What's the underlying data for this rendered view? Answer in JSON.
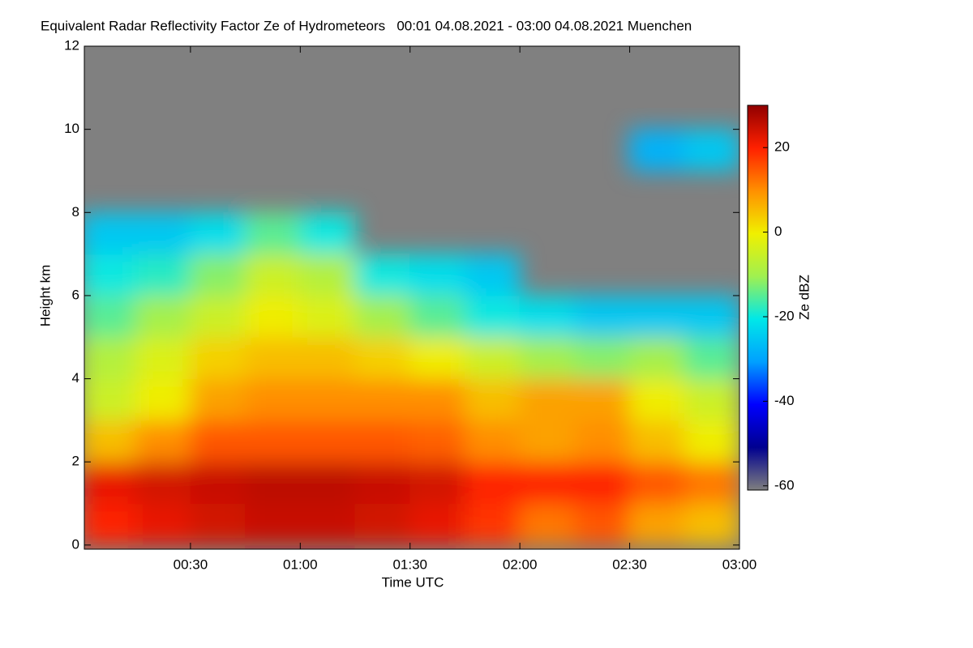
{
  "chart_data": {
    "type": "heatmap",
    "title": "Equivalent Radar Reflectivity Factor Ze of Hydrometeors   00:01 04.08.2021 - 03:00 04.08.2021 Muenchen",
    "x_label": "Time UTC",
    "y_label": "Height km",
    "colorbar_label": "Ze dBZ",
    "x": [
      7.5,
      22.5,
      37.5,
      52.5,
      67.5,
      82.5,
      97.5,
      112.5,
      127.5,
      142.5,
      157.5,
      172.5
    ],
    "y": [
      0.5,
      1.5,
      2.5,
      3.5,
      4.5,
      5.5,
      6.5,
      7.5,
      8.5,
      9.5,
      10.5,
      11.5
    ],
    "z": [
      [
        20,
        22,
        24,
        25,
        25,
        24,
        22,
        18,
        12,
        15,
        8,
        5
      ],
      [
        22,
        24,
        25,
        26,
        26,
        25,
        24,
        20,
        20,
        20,
        15,
        12
      ],
      [
        5,
        10,
        15,
        15,
        15,
        15,
        14,
        10,
        8,
        10,
        5,
        0
      ],
      [
        -5,
        0,
        8,
        10,
        10,
        10,
        10,
        5,
        8,
        8,
        0,
        -5
      ],
      [
        -8,
        -3,
        3,
        5,
        5,
        3,
        0,
        -5,
        -10,
        -12,
        -10,
        -15
      ],
      [
        -15,
        -10,
        -5,
        0,
        -3,
        -10,
        -15,
        -20,
        -22,
        -25,
        -25,
        -25
      ],
      [
        -20,
        -18,
        -12,
        -5,
        -8,
        -20,
        -22,
        -25,
        null,
        null,
        null,
        null
      ],
      [
        -25,
        -25,
        -22,
        -15,
        -20,
        null,
        null,
        null,
        null,
        null,
        null,
        null
      ],
      [
        null,
        null,
        null,
        null,
        null,
        null,
        null,
        null,
        null,
        null,
        null,
        null
      ],
      [
        null,
        null,
        null,
        null,
        null,
        null,
        null,
        null,
        null,
        null,
        -28,
        -25
      ],
      [
        null,
        null,
        null,
        null,
        null,
        null,
        null,
        null,
        null,
        null,
        null,
        null
      ],
      [
        null,
        null,
        null,
        null,
        null,
        null,
        null,
        null,
        null,
        null,
        null,
        null
      ]
    ],
    "xlim": [
      1,
      180
    ],
    "ylim": [
      -0.1,
      12
    ],
    "zlim": [
      -61,
      30
    ],
    "xticks": [
      {
        "value": 30,
        "label": "00:30"
      },
      {
        "value": 60,
        "label": "01:00"
      },
      {
        "value": 90,
        "label": "01:30"
      },
      {
        "value": 120,
        "label": "02:00"
      },
      {
        "value": 150,
        "label": "02:30"
      },
      {
        "value": 180,
        "label": "03:00"
      }
    ],
    "yticks": [
      0,
      2,
      4,
      6,
      8,
      10,
      12
    ],
    "zticks": [
      -60,
      -40,
      -20,
      0,
      20
    ],
    "colorscale": [
      "#7f7f7f",
      "#000090",
      "#0000ff",
      "#00a0ff",
      "#00e8e8",
      "#a0f050",
      "#f0f000",
      "#ff9000",
      "#ff2000",
      "#900000"
    ],
    "missing_color": "#808080"
  }
}
